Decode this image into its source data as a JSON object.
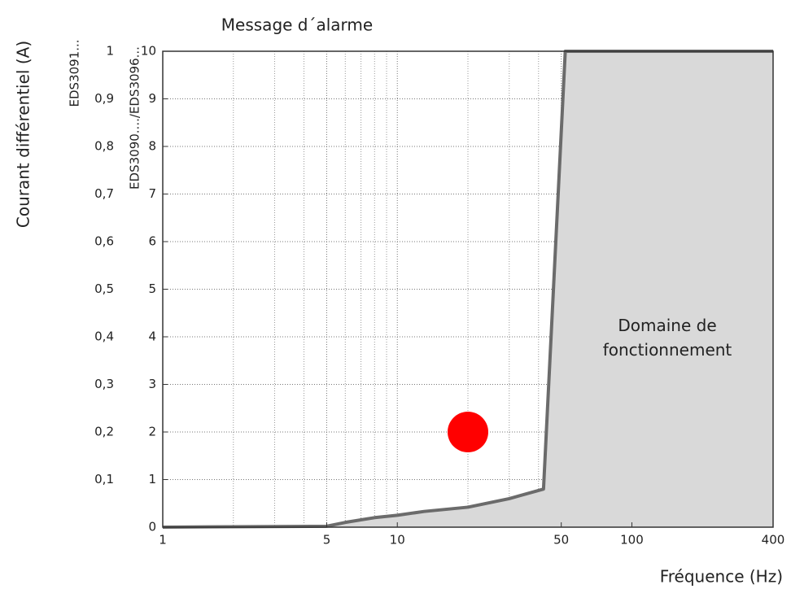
{
  "chart_data": {
    "type": "line",
    "title": "Message d´alarme",
    "xlabel": "Fréquence (Hz)",
    "ylabel": "Courant différentiel (A)",
    "ylabel_axis": "EDS3090..../EDS3096...",
    "y2label": "EDS3091...",
    "annotation": "Domaine de fonctionnement",
    "xscale": "log",
    "xlim": [
      1,
      400
    ],
    "xticks": [
      1,
      5,
      10,
      50,
      100,
      400
    ],
    "xminorticks": [
      2,
      3,
      4,
      6,
      7,
      8,
      9,
      20,
      30,
      40,
      60,
      70,
      80,
      90,
      200,
      300
    ],
    "ylim": [
      0,
      10
    ],
    "yticks": [
      0,
      1,
      2,
      3,
      4,
      5,
      6,
      7,
      8,
      9,
      10
    ],
    "y2lim": [
      0,
      1
    ],
    "y2ticks": [
      {
        "value": 0.1,
        "label": "0,1"
      },
      {
        "value": 0.2,
        "label": "0,2"
      },
      {
        "value": 0.3,
        "label": "0,3"
      },
      {
        "value": 0.4,
        "label": "0,4"
      },
      {
        "value": 0.5,
        "label": "0,5"
      },
      {
        "value": 0.6,
        "label": "0,6"
      },
      {
        "value": 0.7,
        "label": "0,7"
      },
      {
        "value": 0.8,
        "label": "0,8"
      },
      {
        "value": 0.9,
        "label": "0,9"
      },
      1
    ],
    "grid": true,
    "series": [
      {
        "color": "#6b6b6b",
        "fill": "#d9d9d9",
        "x": [
          1,
          5,
          6,
          8,
          10,
          13,
          20,
          30,
          42,
          52,
          400
        ],
        "values": [
          0,
          0.02,
          0.1,
          0.2,
          0.25,
          0.33,
          0.42,
          0.6,
          0.8,
          10,
          10
        ]
      }
    ],
    "points": [
      {
        "x": 20,
        "y": 2,
        "color": "#ff0000"
      }
    ]
  }
}
